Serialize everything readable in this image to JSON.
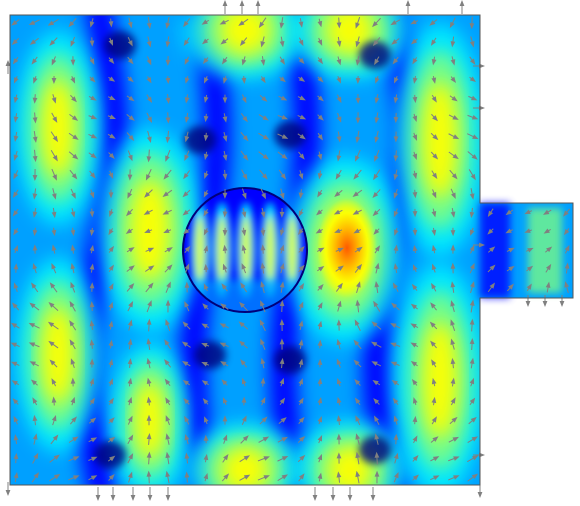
{
  "view": {
    "plot_kind": "field-magnitude-with-arrows",
    "colormap": [
      "#00007a",
      "#0000ff",
      "#00a0ff",
      "#00ffff",
      "#7fff7f",
      "#ffff00",
      "#ff8000",
      "#ff0000"
    ],
    "background": "#ffffff",
    "domain_border_color": "#555555",
    "arrow_color": "#808080",
    "shapes": {
      "main_region": "square",
      "inclusion": "circle",
      "port": "rectangular-waveguide-stub-right"
    }
  }
}
